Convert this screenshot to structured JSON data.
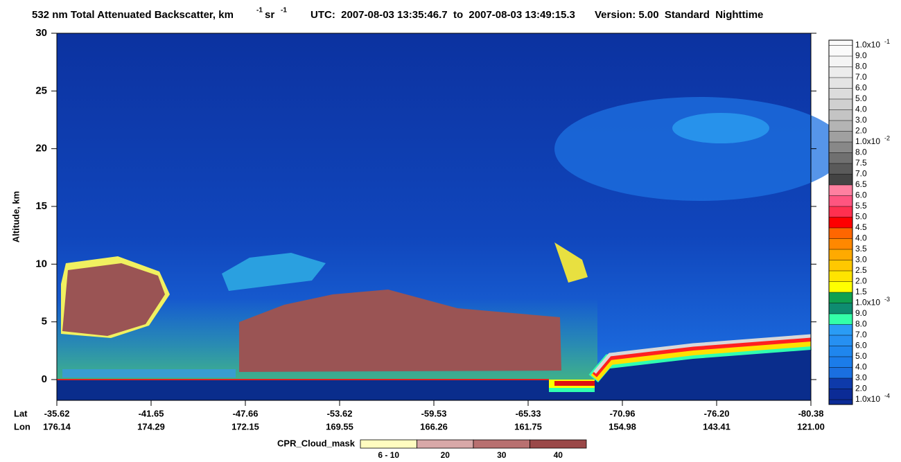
{
  "chart_data": {
    "type": "curtain",
    "title": {
      "main": "532 nm Total Attenuated Backscatter, km",
      "sup1": "-1",
      "mid": " sr",
      "sup2": "-1",
      "utc": "UTC:  2007-08-03 13:35:46.7  to  2007-08-03 13:49:15.3",
      "version": "Version: 5.00  Standard  Nighttime"
    },
    "y_label": "Altitude, km",
    "ylim": [
      -1.8,
      30
    ],
    "yticks": [
      0,
      5,
      10,
      15,
      20,
      25,
      30
    ],
    "x_row_labels": [
      "Lat",
      "Lon"
    ],
    "lat_labels": [
      "-35.62",
      "-41.65",
      "-47.66",
      "-53.62",
      "-59.53",
      "-65.33",
      "-70.96",
      "-76.20",
      "-80.38"
    ],
    "lon_labels": [
      "176.14",
      "174.29",
      "172.15",
      "169.55",
      "166.26",
      "161.75",
      "154.98",
      "143.41",
      "121.00"
    ],
    "colorbar": {
      "labels": [
        {
          "text": "1.0x10",
          "sup": "-4"
        },
        "2.0",
        "3.0",
        "4.0",
        "5.0",
        "6.0",
        "7.0",
        "8.0",
        "9.0",
        {
          "text": "1.0x10",
          "sup": "-3"
        },
        "1.5",
        "2.0",
        "2.5",
        "3.0",
        "3.5",
        "4.0",
        "4.5",
        "5.0",
        "5.5",
        "6.0",
        "6.5",
        "7.0",
        "7.5",
        "8.0",
        {
          "text": "1.0x10",
          "sup": "-2"
        },
        "2.0",
        "3.0",
        "4.0",
        "5.0",
        "6.0",
        "7.0",
        "8.0",
        "9.0",
        {
          "text": "1.0x10",
          "sup": "-1"
        }
      ],
      "colors": [
        "#0b2b96",
        "#0e3aaa",
        "#1a6fe0",
        "#1b7cea",
        "#1f86ee",
        "#2690f2",
        "#2a9cf5",
        "#33ffa8",
        "#0e8c70",
        "#10a050",
        "#ffff00",
        "#ffe400",
        "#ffc800",
        "#ffaa00",
        "#ff8800",
        "#ff6600",
        "#ff0000",
        "#ff3050",
        "#ff5580",
        "#ff80a0",
        "#444444",
        "#5a5a5a",
        "#707070",
        "#888888",
        "#a0a0a0",
        "#b4b4b4",
        "#c4c4c4",
        "#d0d0d0",
        "#dcdcdc",
        "#e4e4e4",
        "#ececec",
        "#f4f4f4",
        "#fafafa"
      ]
    },
    "cloud_mask": {
      "title": "CPR_Cloud_mask",
      "labels": [
        "6 - 10",
        "20",
        "30",
        "40"
      ],
      "colors": [
        "#fffcc0",
        "#d8a8a8",
        "#b87070",
        "#9a4848"
      ]
    }
  }
}
